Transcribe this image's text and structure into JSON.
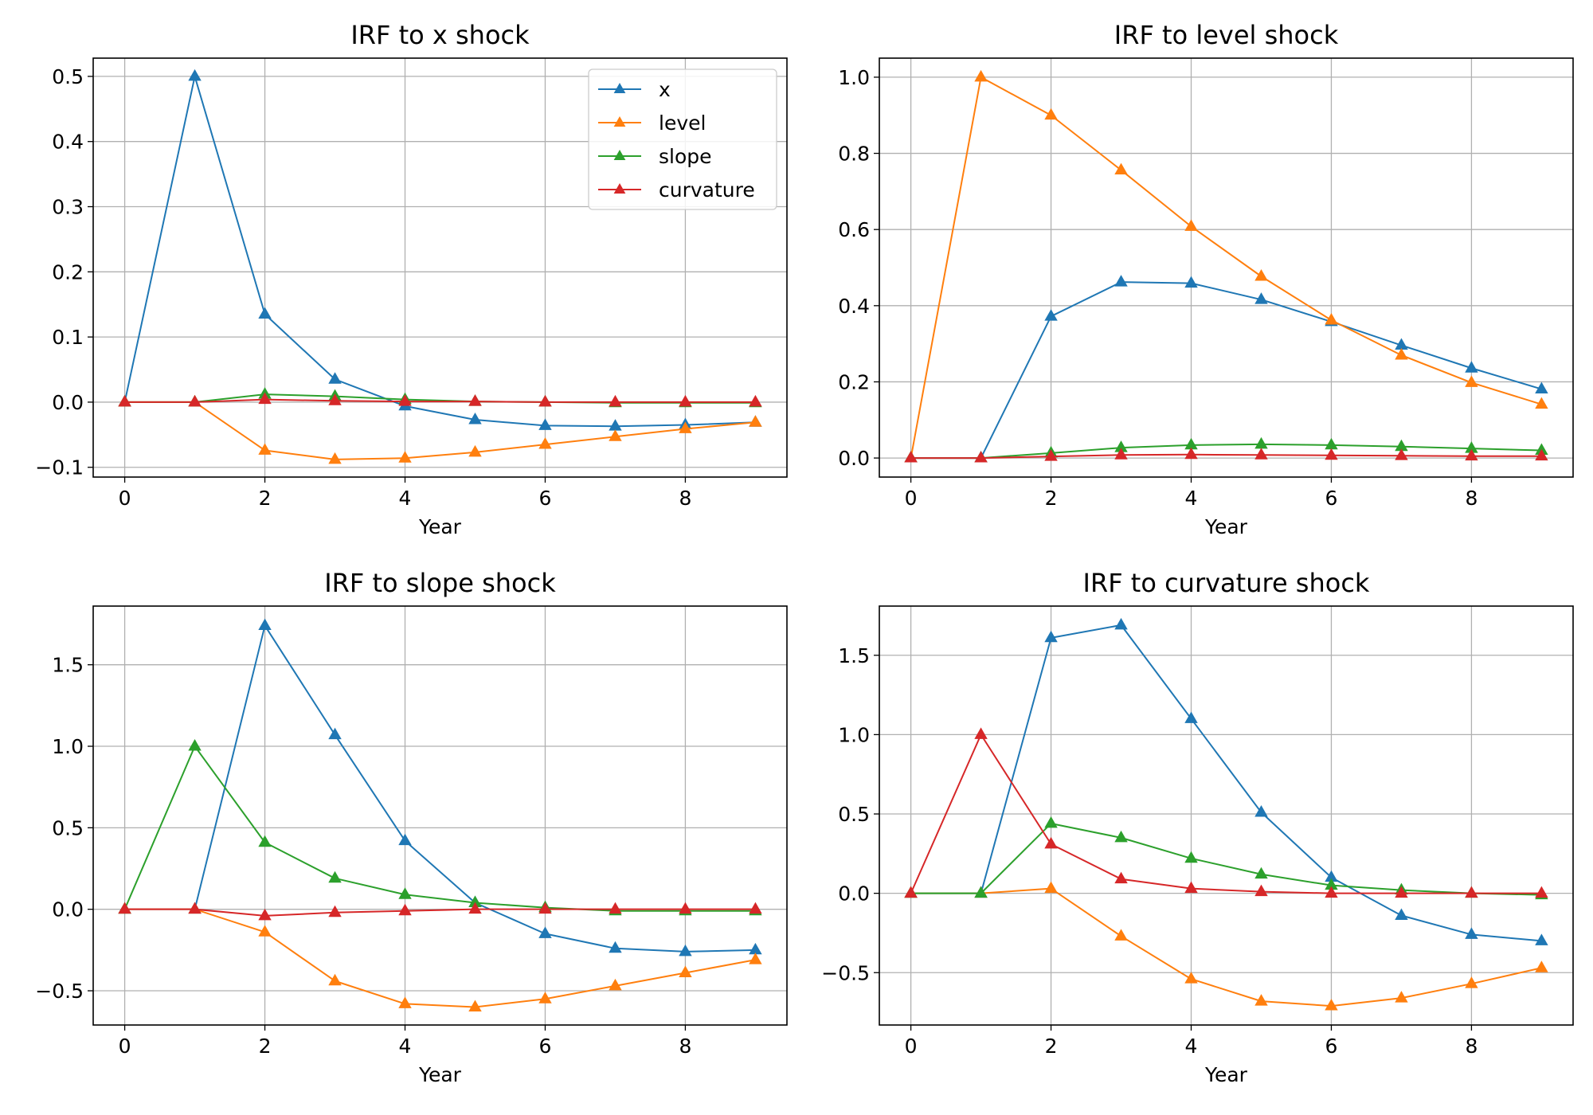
{
  "colors": {
    "x": "#1f77b4",
    "level": "#ff7f0e",
    "slope": "#2ca02c",
    "curvature": "#d62728",
    "grid": "#b0b0b0",
    "frame": "#000000"
  },
  "chart_data": [
    {
      "type": "line",
      "title": "IRF to x shock",
      "xlabel": "Year",
      "ylabel": "",
      "x": [
        0,
        1,
        2,
        3,
        4,
        5,
        6,
        7,
        8,
        9
      ],
      "xlim": [
        -0.45,
        9.45
      ],
      "ylim": [
        -0.115,
        0.528
      ],
      "xticks": [
        0,
        2,
        4,
        6,
        8
      ],
      "yticks": [
        -0.1,
        0.0,
        0.1,
        0.2,
        0.3,
        0.4,
        0.5
      ],
      "ytick_labels": [
        "−0.1",
        "0.0",
        "0.1",
        "0.2",
        "0.3",
        "0.4",
        "0.5"
      ],
      "xtick_labels": [
        "0",
        "2",
        "4",
        "6",
        "8"
      ],
      "grid": true,
      "marker": "triangle-up",
      "legend": "top-right",
      "series": [
        {
          "name": "x",
          "color_key": "x",
          "values": [
            0,
            0.5,
            0.135,
            0.035,
            -0.006,
            -0.027,
            -0.036,
            -0.037,
            -0.035,
            -0.031
          ]
        },
        {
          "name": "level",
          "color_key": "level",
          "values": [
            0,
            0,
            -0.074,
            -0.088,
            -0.086,
            -0.077,
            -0.065,
            -0.053,
            -0.041,
            -0.031
          ]
        },
        {
          "name": "slope",
          "color_key": "slope",
          "values": [
            0,
            0,
            0.012,
            0.009,
            0.004,
            0.001,
            0,
            -0.001,
            -0.001,
            -0.001
          ]
        },
        {
          "name": "curvature",
          "color_key": "curvature",
          "values": [
            0,
            0,
            0.004,
            0.002,
            0.001,
            0.001,
            0,
            0,
            0,
            0
          ]
        }
      ]
    },
    {
      "type": "line",
      "title": "IRF to level shock",
      "xlabel": "Year",
      "ylabel": "",
      "x": [
        0,
        1,
        2,
        3,
        4,
        5,
        6,
        7,
        8,
        9
      ],
      "xlim": [
        -0.45,
        9.45
      ],
      "ylim": [
        -0.05,
        1.05
      ],
      "xticks": [
        0,
        2,
        4,
        6,
        8
      ],
      "yticks": [
        0.0,
        0.2,
        0.4,
        0.6,
        0.8,
        1.0
      ],
      "ytick_labels": [
        "0.0",
        "0.2",
        "0.4",
        "0.6",
        "0.8",
        "1.0"
      ],
      "xtick_labels": [
        "0",
        "2",
        "4",
        "6",
        "8"
      ],
      "grid": true,
      "marker": "triangle-up",
      "series": [
        {
          "color_key": "x",
          "values": [
            0,
            0,
            0.372,
            0.462,
            0.459,
            0.416,
            0.358,
            0.296,
            0.236,
            0.181
          ]
        },
        {
          "color_key": "level",
          "values": [
            0,
            1.0,
            0.9,
            0.756,
            0.608,
            0.477,
            0.362,
            0.27,
            0.198,
            0.141
          ]
        },
        {
          "color_key": "slope",
          "values": [
            0,
            0,
            0.013,
            0.027,
            0.034,
            0.036,
            0.034,
            0.03,
            0.025,
            0.02
          ]
        },
        {
          "color_key": "curvature",
          "values": [
            0,
            0,
            0.004,
            0.008,
            0.009,
            0.008,
            0.007,
            0.006,
            0.005,
            0.005
          ]
        }
      ]
    },
    {
      "type": "line",
      "title": "IRF to slope shock",
      "xlabel": "Year",
      "ylabel": "",
      "x": [
        0,
        1,
        2,
        3,
        4,
        5,
        6,
        7,
        8,
        9
      ],
      "xlim": [
        -0.45,
        9.45
      ],
      "ylim": [
        -0.71,
        1.86
      ],
      "xticks": [
        0,
        2,
        4,
        6,
        8
      ],
      "yticks": [
        -0.5,
        0.0,
        0.5,
        1.0,
        1.5
      ],
      "ytick_labels": [
        "−0.5",
        "0.0",
        "0.5",
        "1.0",
        "1.5"
      ],
      "xtick_labels": [
        "0",
        "2",
        "4",
        "6",
        "8"
      ],
      "grid": true,
      "marker": "triangle-up",
      "series": [
        {
          "color_key": "x",
          "values": [
            0,
            0,
            1.74,
            1.07,
            0.42,
            0.04,
            -0.15,
            -0.24,
            -0.26,
            -0.25
          ]
        },
        {
          "color_key": "level",
          "values": [
            0,
            0,
            -0.14,
            -0.44,
            -0.58,
            -0.6,
            -0.55,
            -0.47,
            -0.39,
            -0.31
          ]
        },
        {
          "color_key": "slope",
          "values": [
            0,
            1.0,
            0.41,
            0.19,
            0.09,
            0.04,
            0.01,
            -0.01,
            -0.01,
            -0.01
          ]
        },
        {
          "color_key": "curvature",
          "values": [
            0,
            0,
            -0.04,
            -0.02,
            -0.01,
            0,
            0,
            0,
            0,
            0
          ]
        }
      ]
    },
    {
      "type": "line",
      "title": "IRF to curvature shock",
      "xlabel": "Year",
      "ylabel": "",
      "x": [
        0,
        1,
        2,
        3,
        4,
        5,
        6,
        7,
        8,
        9
      ],
      "xlim": [
        -0.45,
        9.45
      ],
      "ylim": [
        -0.83,
        1.81
      ],
      "xticks": [
        0,
        2,
        4,
        6,
        8
      ],
      "yticks": [
        -0.5,
        0.0,
        0.5,
        1.0,
        1.5
      ],
      "ytick_labels": [
        "−0.5",
        "0.0",
        "0.5",
        "1.0",
        "1.5"
      ],
      "xtick_labels": [
        "0",
        "2",
        "4",
        "6",
        "8"
      ],
      "grid": true,
      "marker": "triangle-up",
      "series": [
        {
          "color_key": "x",
          "values": [
            0,
            0,
            1.61,
            1.69,
            1.1,
            0.51,
            0.1,
            -0.14,
            -0.26,
            -0.3
          ]
        },
        {
          "color_key": "level",
          "values": [
            0,
            0,
            0.03,
            -0.27,
            -0.54,
            -0.68,
            -0.71,
            -0.66,
            -0.57,
            -0.47
          ]
        },
        {
          "color_key": "slope",
          "values": [
            0,
            0,
            0.44,
            0.35,
            0.22,
            0.12,
            0.05,
            0.02,
            0,
            -0.01
          ]
        },
        {
          "color_key": "curvature",
          "values": [
            0,
            1.0,
            0.31,
            0.09,
            0.03,
            0.01,
            0,
            0,
            0,
            0
          ]
        }
      ]
    }
  ]
}
